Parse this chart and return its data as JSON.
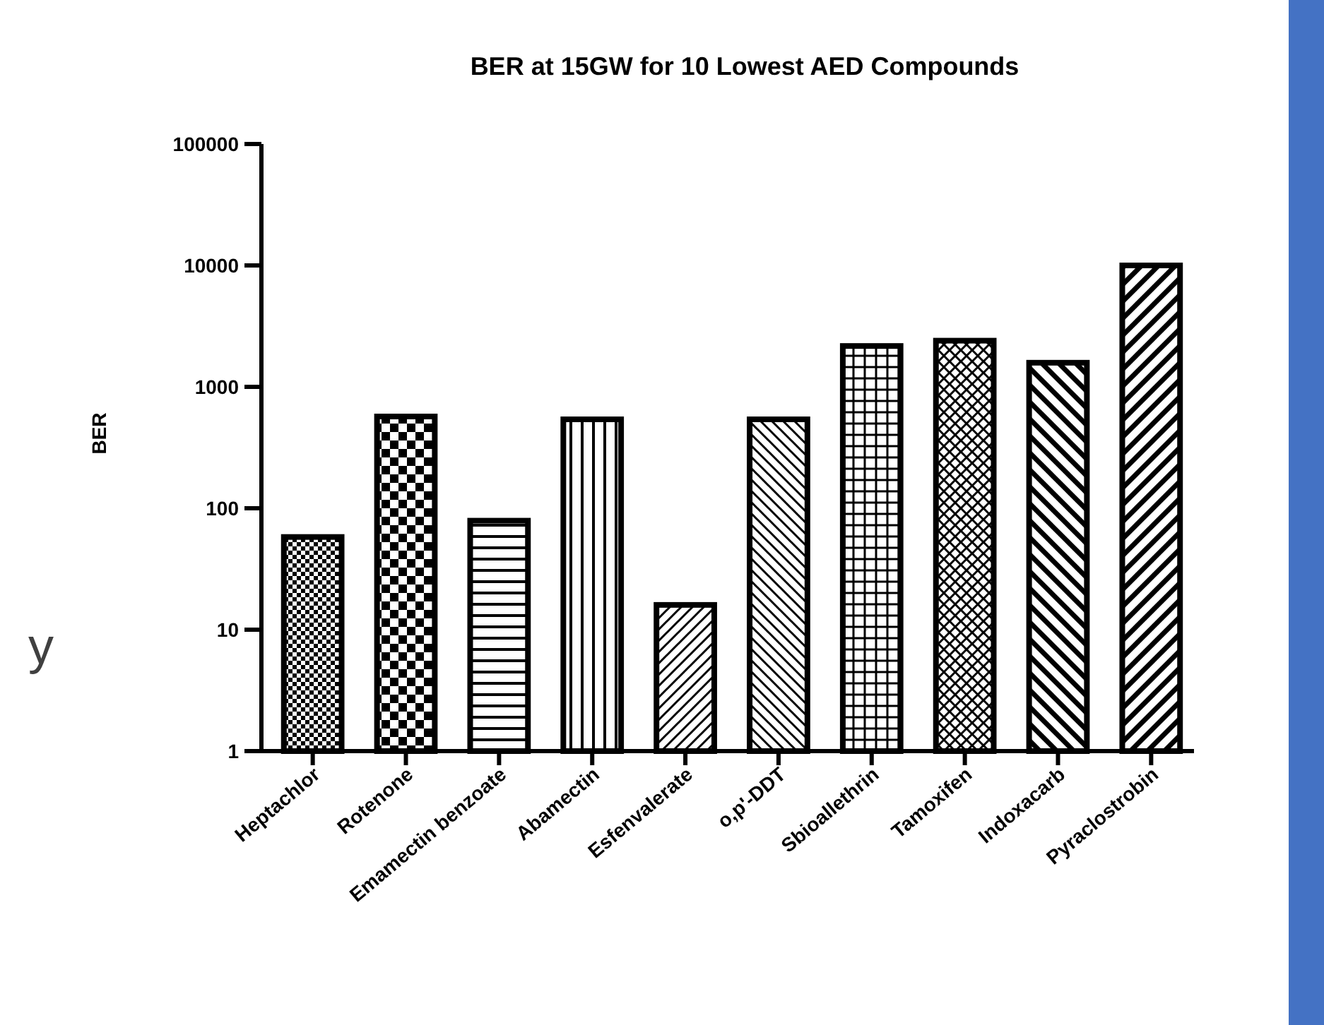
{
  "chart_data": {
    "type": "bar",
    "title": "BER at 15GW for 10 Lowest AED Compounds",
    "ylabel": "BER",
    "categories": [
      "Heptachlor",
      "Rotenone",
      "Emamectin benzoate",
      "Abamectin",
      "Esfenvalerate",
      "o,p'-DDT",
      "Sbioallethrin",
      "Tamoxifen",
      "Indoxacarb",
      "Pyraclostrobin"
    ],
    "values": [
      58,
      570,
      79,
      540,
      16,
      540,
      2170,
      2400,
      1580,
      10000
    ],
    "colors": [
      "#000000",
      "#000000",
      "#000000",
      "#000000",
      "#000000",
      "#000000",
      "#000000",
      "#000000",
      "#000000",
      "#000000"
    ],
    "log": true,
    "ylim": [
      1,
      100000
    ],
    "yticks": [
      1,
      10,
      100,
      1000,
      10000,
      100000
    ],
    "grid": false,
    "annotations": [
      "y"
    ]
  }
}
